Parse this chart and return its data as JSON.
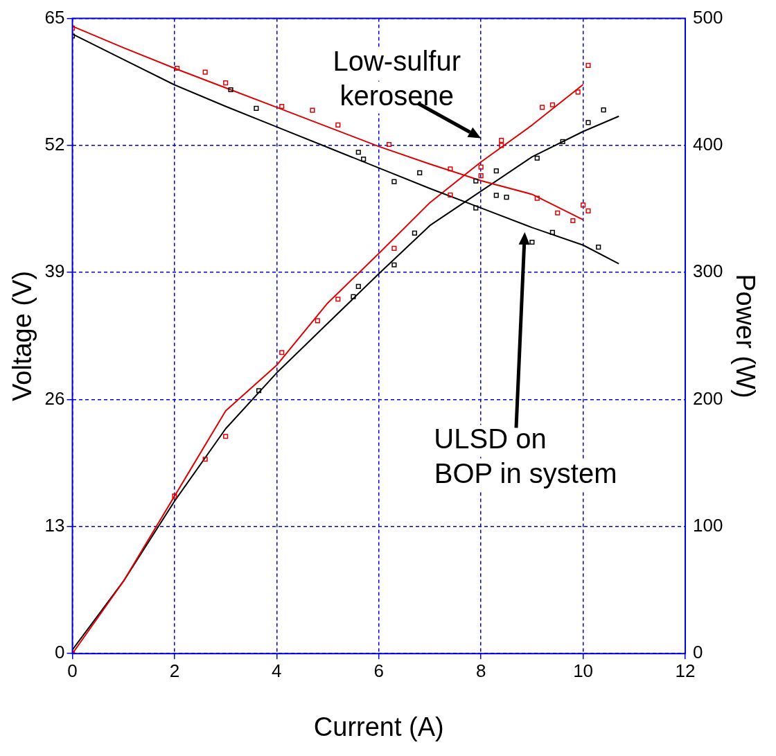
{
  "chart_data": {
    "type": "line",
    "xlabel": "Current (A)",
    "ylabel": "Voltage (V)",
    "y2label": "Power (W)",
    "xlim": [
      0,
      12
    ],
    "xticks": [
      0,
      2,
      4,
      6,
      8,
      10,
      12
    ],
    "ylim": [
      0,
      65
    ],
    "yticks": [
      0,
      13,
      26,
      39,
      52,
      65
    ],
    "y2lim": [
      0,
      500
    ],
    "y2ticks": [
      0,
      100,
      200,
      300,
      400,
      500
    ],
    "grid": true,
    "legend": false,
    "marker": "none",
    "line_style": "solid",
    "series": [
      {
        "color": "#e00000",
        "x": [
          0,
          1,
          2,
          3,
          4,
          5,
          6,
          7,
          8,
          9,
          10
        ],
        "values": [
          64.2,
          62,
          59.9,
          57.9,
          55.9,
          53.9,
          51.9,
          50.1,
          48.4,
          47,
          44.4
        ]
      },
      {
        "color": "#000000",
        "x": [
          0,
          1,
          2,
          3,
          4,
          5,
          6,
          7,
          8,
          9,
          10,
          10.7
        ],
        "values": [
          63.4,
          60.8,
          58.2,
          56,
          53.9,
          51.8,
          49.7,
          47.6,
          45.6,
          43.6,
          41.8,
          39.9
        ]
      },
      {
        "axis": "y2",
        "color": "#e00000",
        "x": [
          0,
          1,
          2,
          3,
          4,
          5,
          6,
          7,
          8,
          9,
          10
        ],
        "values": [
          0,
          57,
          124,
          191,
          227,
          276,
          315,
          355,
          387,
          416,
          448
        ]
      },
      {
        "axis": "y2",
        "color": "#000000",
        "x": [
          0,
          1,
          2,
          3,
          4,
          5,
          6,
          7,
          8,
          9,
          10,
          10.7
        ],
        "values": [
          3,
          57,
          120,
          177,
          221,
          260,
          299,
          337,
          364,
          391,
          411,
          423
        ]
      },
      {
        "type": "scatter",
        "marker": "square",
        "color": "#e00000",
        "x": [
          0,
          2.05,
          2.6,
          3,
          4.1,
          4.7,
          5.2,
          6.2,
          7.4,
          8,
          8.4,
          9.1,
          9.5,
          9.8,
          10,
          10.1
        ],
        "values": [
          64,
          59.9,
          59.5,
          58.4,
          56,
          55.6,
          54.1,
          52.1,
          49.6,
          48.9,
          52,
          46.6,
          45.1,
          44.3,
          45.9,
          45.3
        ]
      },
      {
        "type": "scatter",
        "axis": "y2",
        "marker": "square",
        "color": "#e00000",
        "x": [
          0,
          2,
          2.6,
          3,
          4.1,
          4.8,
          5.2,
          6.3,
          7.4,
          8,
          8.4,
          9.2,
          9.4,
          9.9,
          10.1
        ],
        "values": [
          0,
          124,
          153,
          171,
          237,
          262,
          279,
          319,
          361,
          383,
          404,
          430,
          432,
          442,
          463
        ]
      },
      {
        "type": "scatter",
        "marker": "square",
        "color": "#000000",
        "x": [
          0,
          3.1,
          3.6,
          5.6,
          5.7,
          6.3,
          6.8,
          7.9,
          8.3,
          8.5,
          9,
          9.4,
          10.3
        ],
        "values": [
          63.2,
          57.7,
          55.8,
          51.3,
          50.6,
          48.3,
          49.2,
          45.6,
          46.9,
          46.7,
          42.1,
          43.1,
          41.6
        ]
      },
      {
        "type": "scatter",
        "axis": "y2",
        "marker": "square",
        "color": "#000000",
        "x": [
          3.65,
          5.5,
          5.6,
          6.3,
          6.7,
          7.9,
          8.3,
          9.1,
          9.6,
          10.1,
          10.4
        ],
        "values": [
          207,
          281,
          289,
          306,
          331,
          372,
          380,
          390,
          403,
          418,
          428
        ]
      }
    ],
    "annotations": [
      "Low-sulfur kerosene",
      "ULSD on BOP in system"
    ]
  }
}
